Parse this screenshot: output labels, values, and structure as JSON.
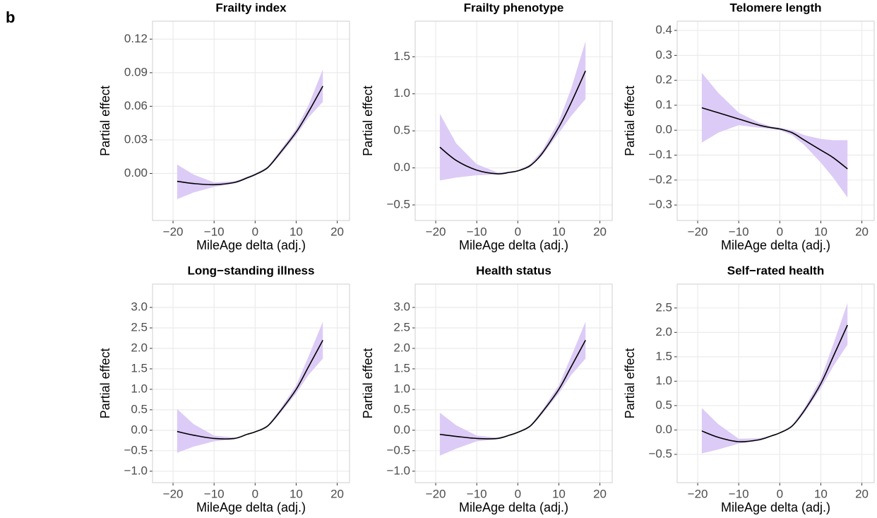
{
  "panel_label": "b",
  "chart_data": [
    {
      "type": "line",
      "title": "Frailty index",
      "xlabel": "MileAge delta (adj.)",
      "ylabel": "Partial effect",
      "x": [
        -19,
        -15,
        -10,
        -5,
        -2,
        0,
        3,
        6,
        10,
        13,
        16.5
      ],
      "values": [
        -0.007,
        -0.009,
        -0.01,
        -0.008,
        -0.004,
        -0.001,
        0.005,
        0.018,
        0.037,
        0.055,
        0.078
      ],
      "lower": [
        -0.023,
        -0.017,
        -0.012,
        -0.009,
        -0.005,
        -0.002,
        0.004,
        0.016,
        0.034,
        0.05,
        0.064
      ],
      "upper": [
        0.008,
        -0.001,
        -0.008,
        -0.007,
        -0.003,
        0.0,
        0.006,
        0.02,
        0.04,
        0.061,
        0.093
      ],
      "color": "#000000",
      "band_color": "#dccbf6",
      "xlim": [
        -25,
        23
      ],
      "xticks": [
        {
          "value": -20,
          "label": "−20"
        },
        {
          "value": -10,
          "label": "−10"
        },
        0,
        10,
        20
      ],
      "ylim": [
        -0.042,
        0.136
      ],
      "yticks": [
        {
          "value": 0,
          "label": "0.00"
        },
        0.03,
        0.06,
        0.09,
        0.12
      ],
      "grid": true
    },
    {
      "type": "line",
      "title": "Frailty phenotype",
      "xlabel": "MileAge delta (adj.)",
      "ylabel": "Partial effect",
      "x": [
        -19,
        -15,
        -10,
        -5,
        -2,
        0,
        3,
        6,
        10,
        13,
        16.5
      ],
      "values": [
        0.28,
        0.1,
        -0.03,
        -0.08,
        -0.06,
        -0.04,
        0.03,
        0.2,
        0.55,
        0.88,
        1.31
      ],
      "lower": [
        -0.17,
        -0.13,
        -0.1,
        -0.09,
        -0.07,
        -0.05,
        0.01,
        0.17,
        0.47,
        0.7,
        0.93
      ],
      "upper": [
        0.73,
        0.33,
        0.05,
        -0.06,
        -0.05,
        -0.03,
        0.05,
        0.24,
        0.63,
        1.07,
        1.71
      ],
      "color": "#000000",
      "band_color": "#dccbf6",
      "xlim": [
        -25,
        23
      ],
      "xticks": [
        {
          "value": -20,
          "label": "−20"
        },
        {
          "value": -10,
          "label": "−10"
        },
        0,
        10,
        20
      ],
      "ylim": [
        -0.71,
        1.98
      ],
      "yticks": [
        {
          "value": -0.5,
          "label": "−0.5"
        },
        {
          "value": 0,
          "label": "0.0"
        },
        0.5,
        {
          "value": 1,
          "label": "1.0"
        },
        1.5
      ],
      "grid": true
    },
    {
      "type": "line",
      "title": "Telomere length",
      "xlabel": "MileAge delta (adj.)",
      "ylabel": "Partial effect",
      "x": [
        -19,
        -15,
        -10,
        -5,
        -2,
        0,
        3,
        6,
        10,
        13,
        16.5
      ],
      "values": [
        0.09,
        0.07,
        0.045,
        0.02,
        0.01,
        0.005,
        -0.01,
        -0.04,
        -0.08,
        -0.11,
        -0.155
      ],
      "lower": [
        -0.05,
        -0.01,
        0.02,
        0.01,
        0.005,
        0.0,
        -0.02,
        -0.06,
        -0.13,
        -0.19,
        -0.27
      ],
      "upper": [
        0.23,
        0.15,
        0.07,
        0.03,
        0.015,
        0.01,
        0.0,
        -0.02,
        -0.035,
        -0.04,
        -0.04
      ],
      "color": "#000000",
      "band_color": "#dccbf6",
      "xlim": [
        -25,
        23
      ],
      "xticks": [
        {
          "value": -20,
          "label": "−20"
        },
        {
          "value": -10,
          "label": "−10"
        },
        0,
        10,
        20
      ],
      "ylim": [
        -0.362,
        0.437
      ],
      "yticks": [
        {
          "value": -0.3,
          "label": "−0.3"
        },
        {
          "value": -0.2,
          "label": "−0.2"
        },
        {
          "value": -0.1,
          "label": "−0.1"
        },
        {
          "value": 0,
          "label": "0.0"
        },
        0.1,
        0.2,
        0.3,
        0.4
      ],
      "grid": true
    },
    {
      "type": "line",
      "title": "Long−standing illness",
      "xlabel": "MileAge delta (adj.)",
      "ylabel": "Partial effect",
      "x": [
        -19,
        -15,
        -10,
        -5,
        -2,
        0,
        3,
        6,
        10,
        13,
        16.5
      ],
      "values": [
        -0.03,
        -0.12,
        -0.2,
        -0.2,
        -0.1,
        -0.04,
        0.1,
        0.45,
        1.0,
        1.55,
        2.2
      ],
      "lower": [
        -0.55,
        -0.4,
        -0.27,
        -0.22,
        -0.11,
        -0.05,
        0.08,
        0.4,
        0.9,
        1.35,
        1.75
      ],
      "upper": [
        0.52,
        0.15,
        -0.13,
        -0.18,
        -0.09,
        -0.03,
        0.12,
        0.5,
        1.1,
        1.8,
        2.65
      ],
      "color": "#000000",
      "band_color": "#dccbf6",
      "xlim": [
        -25,
        23
      ],
      "xticks": [
        {
          "value": -20,
          "label": "−20"
        },
        {
          "value": -10,
          "label": "−10"
        },
        0,
        10,
        20
      ],
      "ylim": [
        -1.28,
        3.57
      ],
      "yticks": [
        {
          "value": -1,
          "label": "−1.0"
        },
        {
          "value": -0.5,
          "label": "−0.5"
        },
        {
          "value": 0,
          "label": "0.0"
        },
        0.5,
        {
          "value": 1,
          "label": "1.0"
        },
        1.5,
        {
          "value": 2,
          "label": "2.0"
        },
        2.5,
        {
          "value": 3,
          "label": "3.0"
        }
      ],
      "grid": true
    },
    {
      "type": "line",
      "title": "Health status",
      "xlabel": "MileAge delta (adj.)",
      "ylabel": "Partial effect",
      "x": [
        -19,
        -15,
        -10,
        -5,
        -2,
        0,
        3,
        6,
        10,
        13,
        16.5
      ],
      "values": [
        -0.1,
        -0.15,
        -0.2,
        -0.2,
        -0.12,
        -0.05,
        0.1,
        0.45,
        1.0,
        1.55,
        2.2
      ],
      "lower": [
        -0.62,
        -0.45,
        -0.27,
        -0.22,
        -0.13,
        -0.06,
        0.08,
        0.4,
        0.9,
        1.35,
        1.75
      ],
      "upper": [
        0.43,
        0.12,
        -0.13,
        -0.18,
        -0.1,
        -0.04,
        0.12,
        0.5,
        1.1,
        1.8,
        2.65
      ],
      "color": "#000000",
      "band_color": "#dccbf6",
      "xlim": [
        -25,
        23
      ],
      "xticks": [
        {
          "value": -20,
          "label": "−20"
        },
        {
          "value": -10,
          "label": "−10"
        },
        0,
        10,
        20
      ],
      "ylim": [
        -1.28,
        3.57
      ],
      "yticks": [
        {
          "value": -1,
          "label": "−1.0"
        },
        {
          "value": -0.5,
          "label": "−0.5"
        },
        {
          "value": 0,
          "label": "0.0"
        },
        0.5,
        {
          "value": 1,
          "label": "1.0"
        },
        1.5,
        {
          "value": 2,
          "label": "2.0"
        },
        2.5,
        {
          "value": 3,
          "label": "3.0"
        }
      ],
      "grid": true
    },
    {
      "type": "line",
      "title": "Self−rated health",
      "xlabel": "MileAge delta (adj.)",
      "ylabel": "Partial effect",
      "x": [
        -19,
        -15,
        -10,
        -5,
        -2,
        0,
        3,
        6,
        10,
        13,
        16.5
      ],
      "values": [
        -0.02,
        -0.15,
        -0.24,
        -0.2,
        -0.12,
        -0.06,
        0.08,
        0.4,
        0.95,
        1.5,
        2.15
      ],
      "lower": [
        -0.48,
        -0.4,
        -0.28,
        -0.22,
        -0.13,
        -0.07,
        0.06,
        0.35,
        0.85,
        1.3,
        1.75
      ],
      "upper": [
        0.45,
        0.12,
        -0.18,
        -0.17,
        -0.11,
        -0.05,
        0.1,
        0.45,
        1.05,
        1.75,
        2.6
      ],
      "color": "#000000",
      "band_color": "#dccbf6",
      "xlim": [
        -25,
        23
      ],
      "xticks": [
        {
          "value": -20,
          "label": "−20"
        },
        {
          "value": -10,
          "label": "−10"
        },
        0,
        10,
        20
      ],
      "ylim": [
        -1.08,
        2.99
      ],
      "yticks": [
        {
          "value": -0.5,
          "label": "−0.5"
        },
        {
          "value": 0,
          "label": "0.0"
        },
        0.5,
        {
          "value": 1,
          "label": "1.0"
        },
        1.5,
        {
          "value": 2,
          "label": "2.0"
        },
        2.5
      ],
      "grid": true
    }
  ]
}
